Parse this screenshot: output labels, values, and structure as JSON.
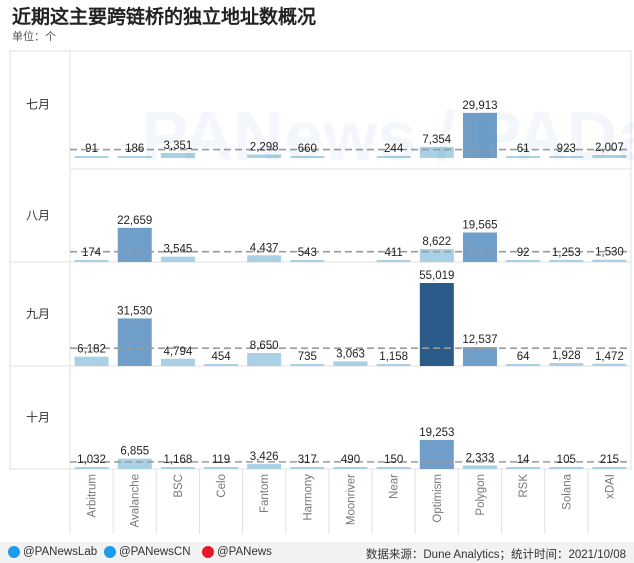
{
  "title": "近期这主要跨链桥的独立地址数概况",
  "unit": "单位：个",
  "watermark": "PANews / PAData",
  "footer": {
    "twitter_lab": "@PANewsLab",
    "twitter_cn": "@PANewsCN",
    "weibo": "@PANews",
    "source": "数据来源：Dune Analytics；统计时间：2021/10/08"
  },
  "colors": {
    "light": "#a9d0e5",
    "mid": "#6f9fc9",
    "dark": "#2a5b89",
    "twitter": "#1d9bf0",
    "weibo": "#e6162d",
    "grid": "#e2e2e2",
    "avg": "#9a9a9a"
  },
  "chart_data": {
    "type": "bar",
    "categories": [
      "Arbitrum",
      "Avalanche",
      "BSC",
      "Celo",
      "Fantom",
      "Harmony",
      "Moonriver",
      "Near",
      "Optimism",
      "Polygon",
      "RSK",
      "Solana",
      "xDAI"
    ],
    "rows": [
      {
        "label": "七月",
        "values": [
          91,
          186,
          3351,
          0,
          2298,
          660,
          0,
          244,
          7354,
          29913,
          61,
          923,
          2007
        ],
        "value_labels": [
          "91",
          "186",
          "3,351",
          "",
          "2,298",
          "660",
          "",
          "244",
          "7,354",
          "29,913",
          "61",
          "923",
          "2,007"
        ]
      },
      {
        "label": "八月",
        "values": [
          174,
          22659,
          3545,
          0,
          4437,
          543,
          0,
          411,
          8622,
          19565,
          92,
          1253,
          1530
        ],
        "value_labels": [
          "174",
          "22,659",
          "3,545",
          "",
          "4,437",
          "543",
          "",
          "411",
          "8,622",
          "19,565",
          "92",
          "1,253",
          "1,530"
        ]
      },
      {
        "label": "九月",
        "values": [
          6182,
          31530,
          4794,
          454,
          8650,
          735,
          3063,
          1158,
          55019,
          12537,
          64,
          1928,
          1472
        ],
        "value_labels": [
          "6,182",
          "31,530",
          "4,794",
          "454",
          "8,650",
          "735",
          "3,063",
          "1,158",
          "55,019",
          "12,537",
          "64",
          "1,928",
          "1,472"
        ]
      },
      {
        "label": "十月",
        "values": [
          1032,
          6855,
          1168,
          119,
          3426,
          317,
          490,
          150,
          19253,
          2333,
          14,
          105,
          215
        ],
        "value_labels": [
          "1,032",
          "6,855",
          "1,168",
          "119",
          "3,426",
          "317",
          "490",
          "150",
          "19,253",
          "2,333",
          "14",
          "105",
          "215"
        ]
      }
    ],
    "ylim": [
      0,
      60000
    ],
    "average_line": "dashed"
  }
}
